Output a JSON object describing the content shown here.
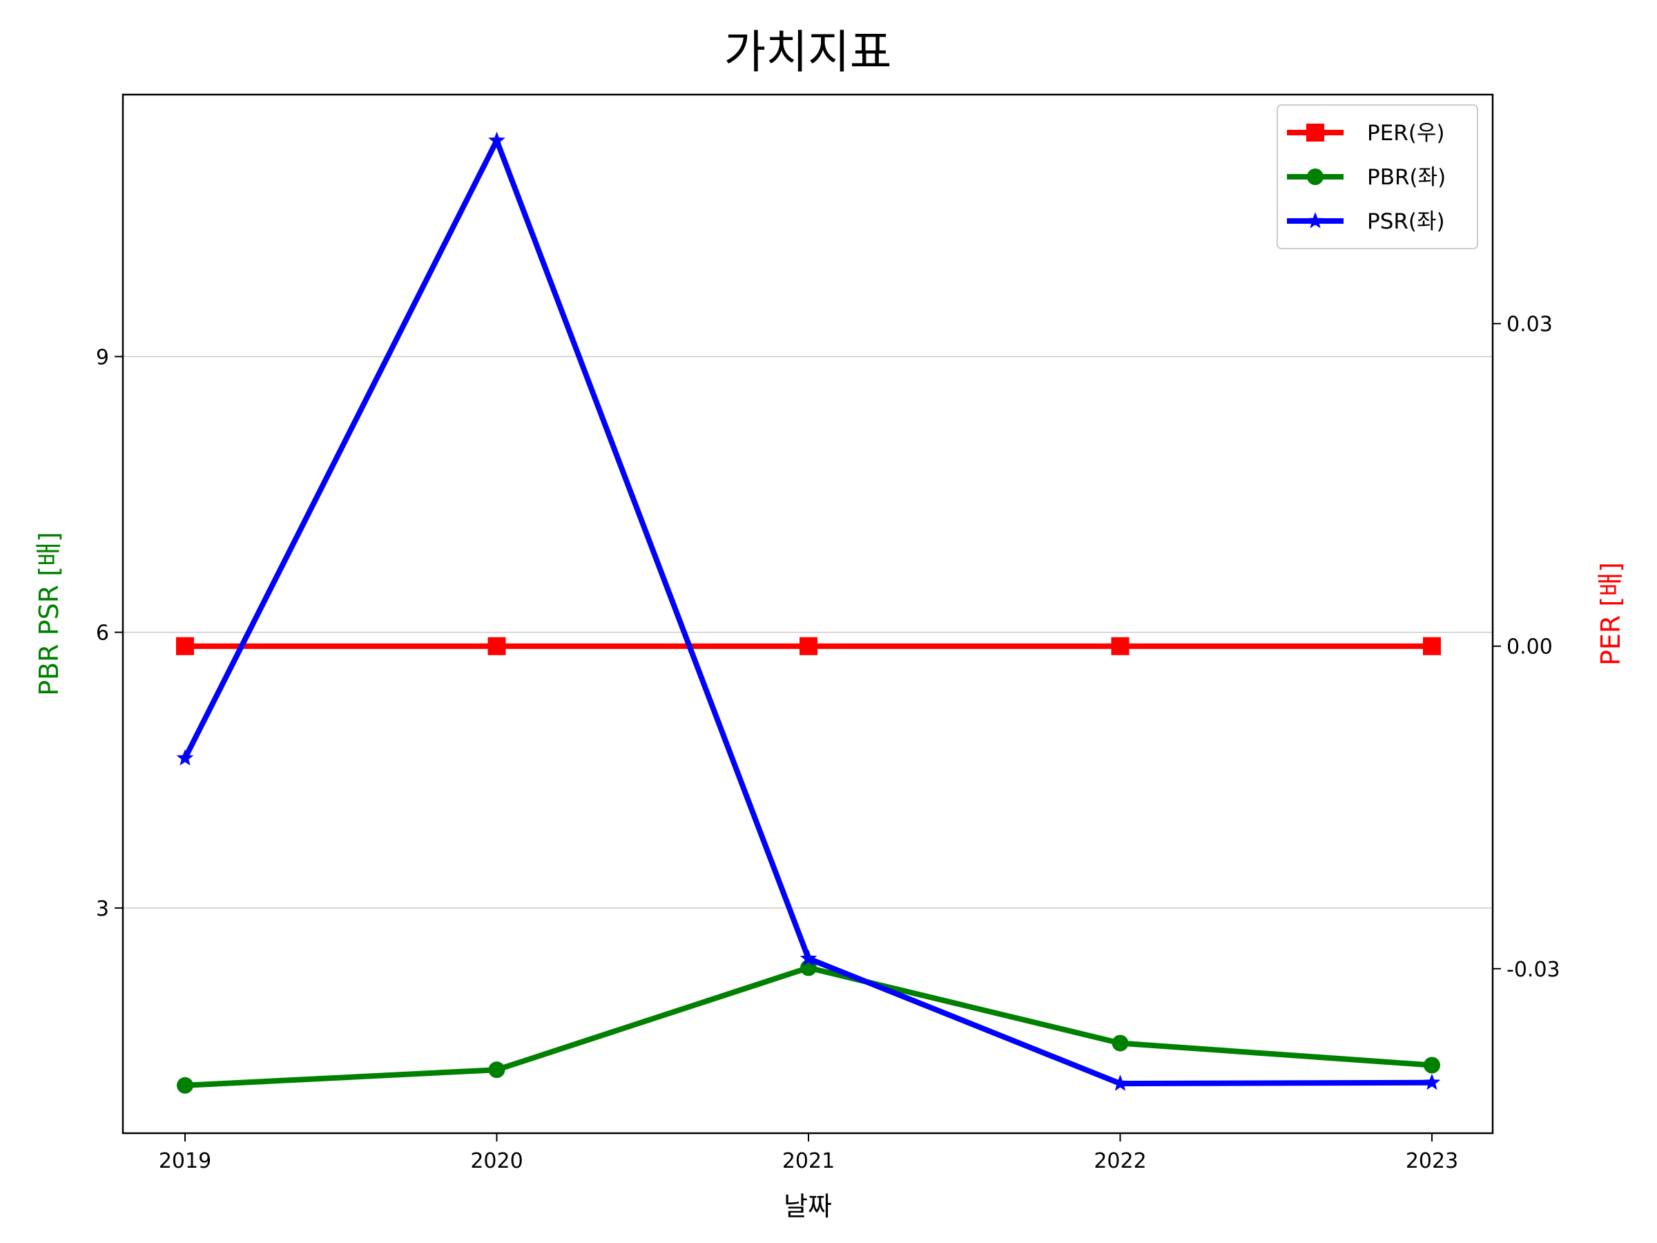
{
  "chart_data": {
    "type": "line",
    "title": "가치지표",
    "xlabel": "날짜",
    "ylabel_left": "PBR PSR [배]",
    "ylabel_right": "PER [배]",
    "categories": [
      "2019",
      "2020",
      "2021",
      "2022",
      "2023"
    ],
    "left_axis": {
      "ylim": [
        0.55,
        11.85
      ],
      "ticks": [
        3,
        6,
        9
      ],
      "tick_labels": [
        "3",
        "6",
        "9"
      ]
    },
    "right_axis": {
      "ylim": [
        -0.0453,
        0.0513
      ],
      "ticks": [
        -0.03,
        0.0,
        0.03
      ],
      "tick_labels": [
        "-0.03",
        "0.00",
        "0.03"
      ]
    },
    "grid": "horizontal",
    "legend_position": "top-right",
    "series": [
      {
        "name": "PER(우)",
        "axis": "right",
        "color": "#ff0000",
        "marker": "square",
        "values": [
          0.0,
          0.0,
          0.0,
          0.0,
          0.0
        ]
      },
      {
        "name": "PBR(좌)",
        "axis": "left",
        "color": "#008000",
        "marker": "circle",
        "values": [
          1.07,
          1.24,
          2.35,
          1.53,
          1.29
        ]
      },
      {
        "name": "PSR(좌)",
        "axis": "left",
        "color": "#0000ff",
        "marker": "star",
        "values": [
          4.63,
          11.35,
          2.45,
          1.09,
          1.1
        ]
      }
    ]
  }
}
